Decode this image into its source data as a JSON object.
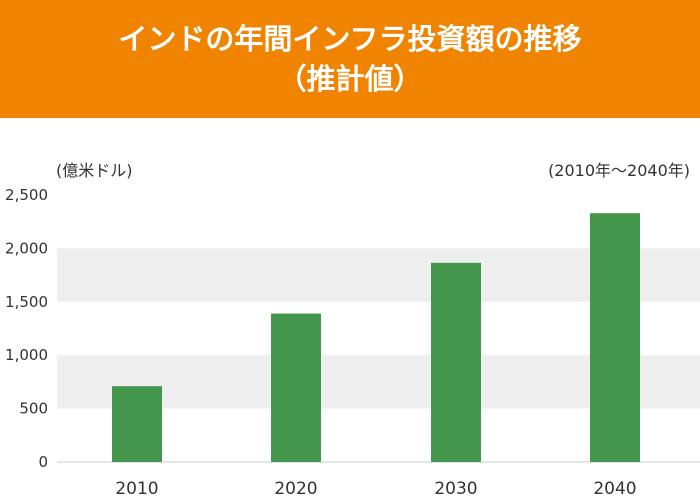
{
  "header": {
    "title_line1": "インドの年間インフラ投資額の推移",
    "title_line2": "（推計値）",
    "background": "#f08300"
  },
  "chart_data": {
    "type": "bar",
    "unit_label": "(億米ドル)",
    "range_label": "(2010年～2040年)",
    "categories": [
      "2010",
      "2020",
      "2030",
      "2040"
    ],
    "values": [
      710,
      1390,
      1865,
      2330
    ],
    "ylim": [
      0,
      2500
    ],
    "yticks": [
      0,
      500,
      1000,
      1500,
      2000,
      2500
    ],
    "ytick_labels": [
      "0",
      "500",
      "1,000",
      "1,500",
      "2,000",
      "2,500"
    ],
    "bar_color": "#43964b",
    "band_color": "#eeeeee",
    "grid": false,
    "legend": "none"
  }
}
